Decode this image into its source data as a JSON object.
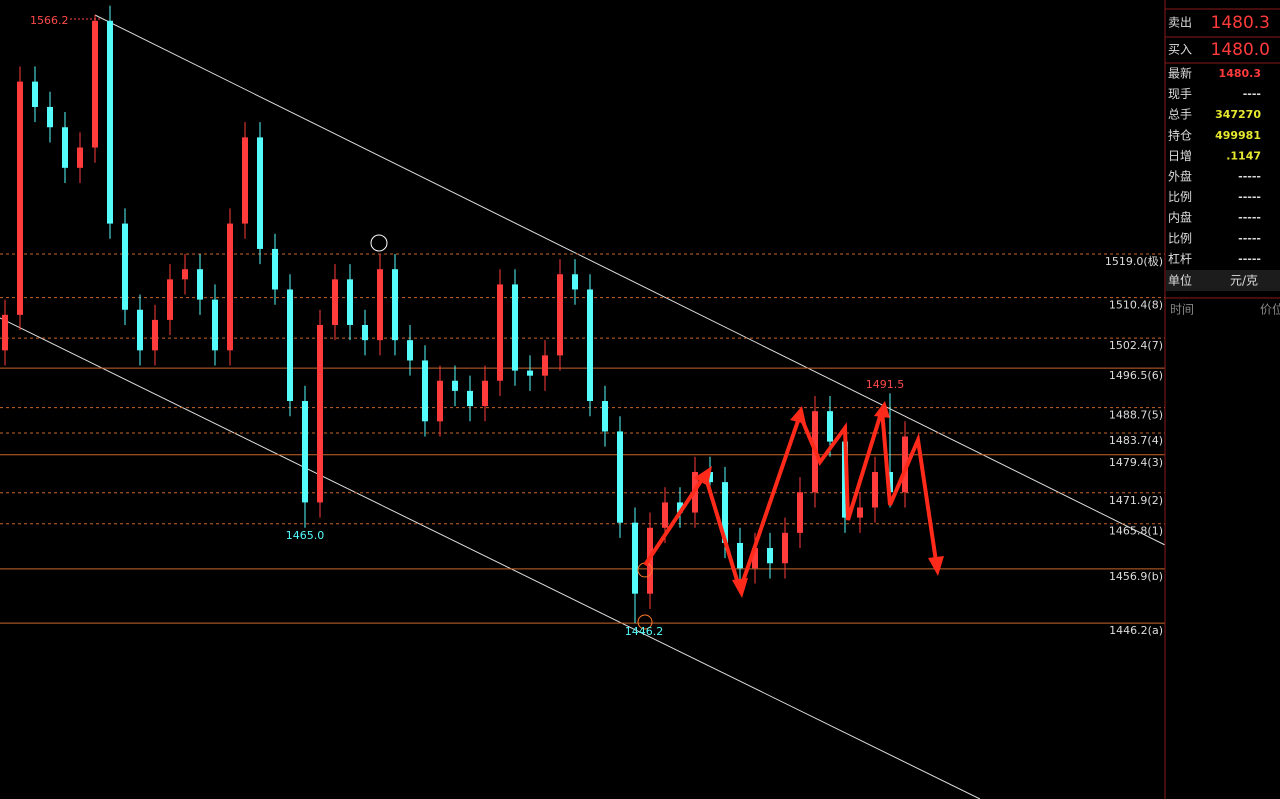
{
  "chart_data": {
    "type": "candlestick",
    "ylim": [
      1411.5,
      1569.1
    ],
    "open": [
      1500,
      1507,
      1553,
      1548,
      1544,
      1536,
      1540,
      1565,
      1525,
      1508,
      1500,
      1506,
      1514,
      1516,
      1510,
      1500,
      1525,
      1542,
      1520,
      1512,
      1490,
      1470,
      1505,
      1514,
      1505,
      1502,
      1516,
      1502,
      1498,
      1486,
      1494,
      1492,
      1489,
      1494,
      1513,
      1496,
      1495,
      1499,
      1515,
      1512,
      1490,
      1484,
      1466,
      1452,
      1465,
      1470,
      1468,
      1476,
      1474,
      1462,
      1457,
      1461,
      1458,
      1464,
      1472,
      1488,
      1482,
      1467,
      1469,
      1476,
      1472
    ],
    "high": [
      1510,
      1556,
      1556,
      1551,
      1547,
      1543,
      1566.2,
      1568,
      1528,
      1511,
      1509,
      1517,
      1519,
      1519,
      1513,
      1528,
      1545,
      1545,
      1523,
      1515,
      1493,
      1508,
      1517,
      1517,
      1508,
      1519,
      1519,
      1505,
      1501,
      1497,
      1497,
      1495,
      1497,
      1516,
      1516,
      1499,
      1502,
      1518,
      1518,
      1515,
      1493,
      1487,
      1469,
      1468,
      1473,
      1473,
      1479,
      1479,
      1477,
      1465,
      1464,
      1464,
      1467,
      1475,
      1491,
      1491,
      1485,
      1472,
      1479,
      1491.5,
      1486
    ],
    "low": [
      1497,
      1504,
      1545,
      1541,
      1533,
      1533,
      1537,
      1522,
      1505,
      1497,
      1497,
      1503,
      1511,
      1507,
      1497,
      1497,
      1522,
      1517,
      1509,
      1487,
      1465,
      1467,
      1502,
      1502,
      1499,
      1499,
      1499,
      1495,
      1483,
      1483,
      1489,
      1486,
      1486,
      1491,
      1493,
      1492,
      1492,
      1496,
      1509,
      1487,
      1481,
      1463,
      1446.2,
      1449,
      1462,
      1465,
      1465,
      1471,
      1459,
      1454,
      1454,
      1455,
      1455,
      1461,
      1469,
      1479,
      1464,
      1464,
      1466,
      1469,
      1469
    ],
    "close": [
      1507,
      1553,
      1548,
      1544,
      1536,
      1540,
      1565,
      1525,
      1508,
      1500,
      1506,
      1514,
      1516,
      1510,
      1500,
      1525,
      1542,
      1520,
      1512,
      1490,
      1470,
      1505,
      1514,
      1505,
      1502,
      1516,
      1502,
      1498,
      1486,
      1494,
      1492,
      1489,
      1494,
      1513,
      1496,
      1495,
      1499,
      1515,
      1512,
      1490,
      1484,
      1466,
      1452,
      1465,
      1470,
      1468,
      1476,
      1474,
      1462,
      1457,
      1461,
      1458,
      1464,
      1472,
      1488,
      1482,
      1467,
      1469,
      1476,
      1472,
      1483
    ],
    "up_color": "#ff3b3b",
    "down_color": "#54fcfc",
    "levels": [
      {
        "value": 1519.0,
        "label": "1519.0(极)",
        "style": "dashed"
      },
      {
        "value": 1510.4,
        "label": "1510.4(8)",
        "style": "dashed"
      },
      {
        "value": 1502.4,
        "label": "1502.4(7)",
        "style": "dashed"
      },
      {
        "value": 1496.5,
        "label": "1496.5(6)",
        "style": "solid"
      },
      {
        "value": 1488.7,
        "label": "1488.7(5)",
        "style": "dashed"
      },
      {
        "value": 1483.7,
        "label": "1483.7(4)",
        "style": "dashed"
      },
      {
        "value": 1479.4,
        "label": "1479.4(3)",
        "style": "solid"
      },
      {
        "value": 1471.9,
        "label": "1471.9(2)",
        "style": "dashed"
      },
      {
        "value": 1465.8,
        "label": "1465.8(1)",
        "style": "dashed"
      },
      {
        "value": 1456.9,
        "label": "1456.9(b)",
        "style": "solid"
      },
      {
        "value": 1446.2,
        "label": "1446.2(a)",
        "style": "solid"
      }
    ],
    "annotations": [
      "1566.2",
      "1465.0",
      "1491.5",
      "1446.2"
    ]
  },
  "quote_panel": {
    "sell_label": "卖出",
    "sell": "1480.3",
    "buy_label": "买入",
    "buy": "1480.0",
    "rows": [
      [
        "最新",
        "1480.3"
      ],
      [
        "现手",
        "----"
      ],
      [
        "总手",
        "347270"
      ],
      [
        "持仓",
        "499981"
      ],
      [
        "日增",
        ".1147"
      ],
      [
        "外盘",
        "-----"
      ],
      [
        "比例",
        "-----"
      ],
      [
        "内盘",
        "-----"
      ],
      [
        "比例",
        "-----"
      ],
      [
        "杠杆",
        "-----"
      ]
    ],
    "unit_label": "单位",
    "unit": "元/克",
    "time_header": "时间",
    "price_header": "价位"
  }
}
